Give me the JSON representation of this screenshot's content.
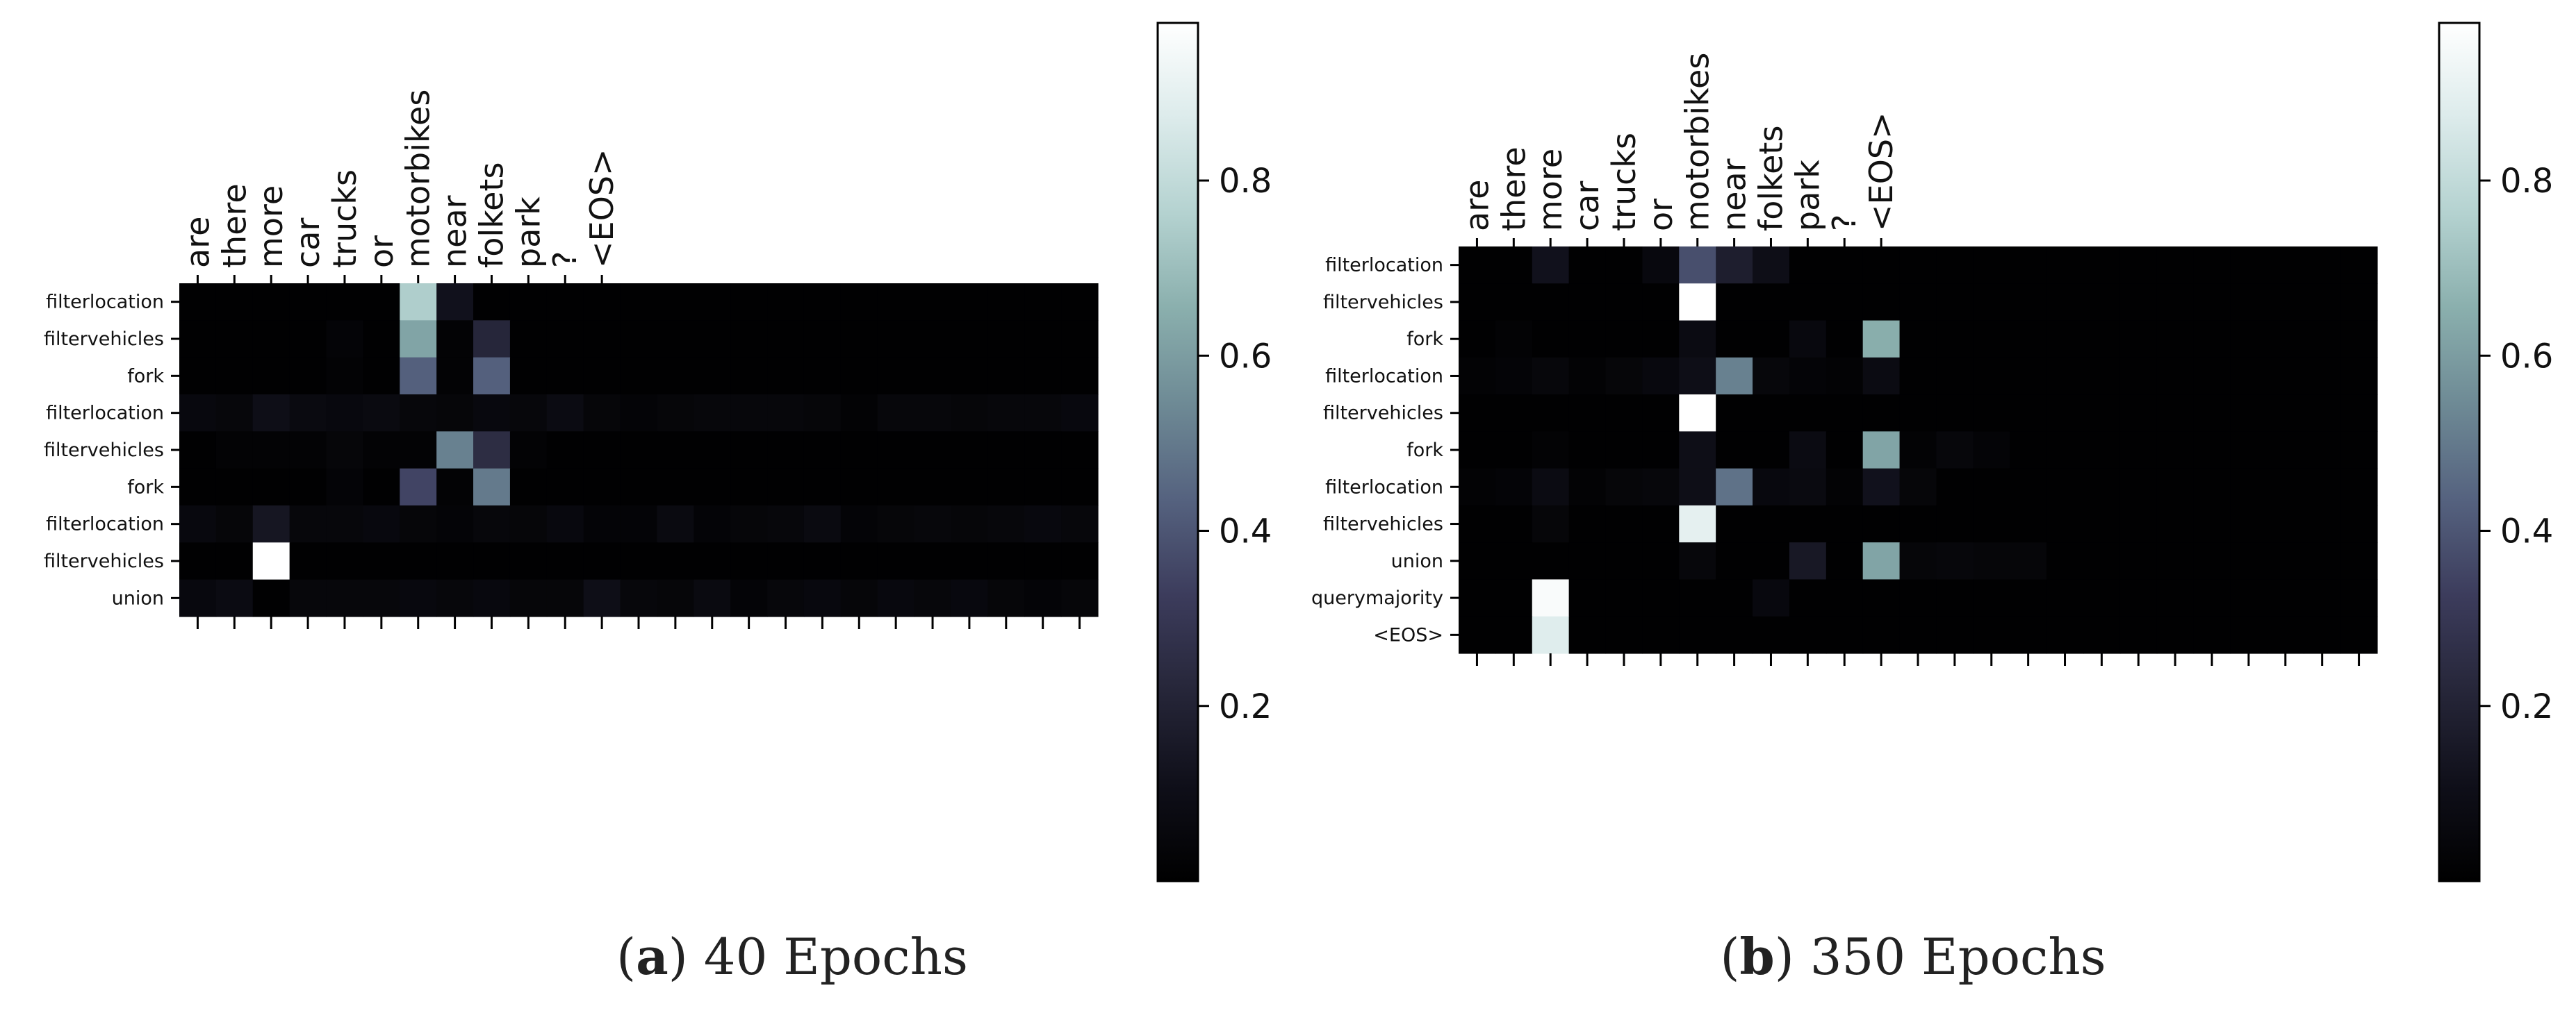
{
  "chart_data": [
    {
      "type": "heatmap",
      "panel_label": "a",
      "caption": "40 Epochs",
      "x_tokens": [
        "are",
        "there",
        "more",
        "car",
        "trucks",
        "or",
        "motorbikes",
        "near",
        "folkets",
        "park",
        "?",
        "<EOS>"
      ],
      "n_cols": 25,
      "y_labels": [
        "filterlocation",
        "filtervehicles",
        "fork",
        "filterlocation",
        "filtervehicles",
        "fork",
        "filterlocation",
        "filtervehicles",
        "union"
      ],
      "colorbar_ticks": [
        "0.2",
        "0.4",
        "0.6",
        "0.8"
      ],
      "vmin": 0.0,
      "vmax": 0.98,
      "colormap": [
        "#000000",
        "#0f0f19",
        "#262639",
        "#3c3c5c",
        "#55627f",
        "#6e8a95",
        "#8aafad",
        "#b4d2d0",
        "#dcebeb",
        "#ffffff"
      ],
      "values": [
        [
          0.01,
          0.01,
          0.01,
          0.01,
          0.01,
          0.01,
          0.75,
          0.12,
          0.01,
          0.01,
          0.01,
          0.01,
          0.01,
          0.01,
          0.01,
          0.01,
          0.01,
          0.01,
          0.01,
          0.01,
          0.01,
          0.01,
          0.01,
          0.01,
          0.01
        ],
        [
          0.01,
          0.01,
          0.01,
          0.01,
          0.03,
          0.01,
          0.62,
          0.02,
          0.22,
          0.01,
          0.01,
          0.01,
          0.01,
          0.01,
          0.01,
          0.01,
          0.01,
          0.01,
          0.01,
          0.01,
          0.01,
          0.01,
          0.01,
          0.01,
          0.01
        ],
        [
          0.01,
          0.01,
          0.01,
          0.01,
          0.02,
          0.01,
          0.43,
          0.02,
          0.43,
          0.01,
          0.01,
          0.01,
          0.01,
          0.01,
          0.01,
          0.01,
          0.01,
          0.01,
          0.01,
          0.01,
          0.01,
          0.01,
          0.01,
          0.01,
          0.01
        ],
        [
          0.06,
          0.05,
          0.1,
          0.07,
          0.06,
          0.07,
          0.05,
          0.04,
          0.06,
          0.05,
          0.08,
          0.04,
          0.03,
          0.04,
          0.05,
          0.05,
          0.05,
          0.04,
          0.02,
          0.05,
          0.05,
          0.04,
          0.05,
          0.05,
          0.06
        ],
        [
          0.01,
          0.02,
          0.02,
          0.02,
          0.04,
          0.02,
          0.02,
          0.52,
          0.25,
          0.02,
          0.01,
          0.01,
          0.01,
          0.01,
          0.01,
          0.01,
          0.01,
          0.01,
          0.01,
          0.01,
          0.01,
          0.01,
          0.01,
          0.01,
          0.01
        ],
        [
          0.01,
          0.01,
          0.01,
          0.01,
          0.03,
          0.01,
          0.35,
          0.02,
          0.5,
          0.01,
          0.01,
          0.01,
          0.01,
          0.01,
          0.01,
          0.01,
          0.01,
          0.01,
          0.01,
          0.01,
          0.01,
          0.01,
          0.01,
          0.01,
          0.01
        ],
        [
          0.06,
          0.04,
          0.14,
          0.05,
          0.05,
          0.06,
          0.04,
          0.03,
          0.05,
          0.04,
          0.06,
          0.03,
          0.03,
          0.07,
          0.03,
          0.04,
          0.05,
          0.07,
          0.03,
          0.04,
          0.05,
          0.04,
          0.05,
          0.06,
          0.05
        ],
        [
          0.01,
          0.01,
          0.98,
          0.01,
          0.01,
          0.01,
          0.01,
          0.01,
          0.01,
          0.01,
          0.01,
          0.01,
          0.01,
          0.01,
          0.01,
          0.01,
          0.01,
          0.01,
          0.01,
          0.01,
          0.01,
          0.01,
          0.01,
          0.01,
          0.01
        ],
        [
          0.06,
          0.08,
          0.01,
          0.05,
          0.05,
          0.05,
          0.06,
          0.05,
          0.06,
          0.04,
          0.04,
          0.1,
          0.05,
          0.04,
          0.07,
          0.03,
          0.05,
          0.06,
          0.04,
          0.06,
          0.05,
          0.06,
          0.04,
          0.03,
          0.04
        ]
      ]
    },
    {
      "type": "heatmap",
      "panel_label": "b",
      "caption": "350 Epochs",
      "x_tokens": [
        "are",
        "there",
        "more",
        "car",
        "trucks",
        "or",
        "motorbikes",
        "near",
        "folkets",
        "park",
        "?",
        "<EOS>"
      ],
      "n_cols": 25,
      "y_labels": [
        "filterlocation",
        "filtervehicles",
        "fork",
        "filterlocation",
        "filtervehicles",
        "fork",
        "filterlocation",
        "filtervehicles",
        "union",
        "querymajority",
        "<EOS>"
      ],
      "colorbar_ticks": [
        "0.2",
        "0.4",
        "0.6",
        "0.8"
      ],
      "vmin": 0.0,
      "vmax": 0.98,
      "colormap": [
        "#000000",
        "#0f0f19",
        "#262639",
        "#3c3c5c",
        "#55627f",
        "#6e8a95",
        "#8aafad",
        "#b4d2d0",
        "#dcebeb",
        "#ffffff"
      ],
      "values": [
        [
          0.01,
          0.01,
          0.12,
          0.01,
          0.01,
          0.06,
          0.38,
          0.18,
          0.1,
          0.01,
          0.01,
          0.01,
          0.01,
          0.01,
          0.01,
          0.01,
          0.01,
          0.01,
          0.01,
          0.01,
          0.01,
          0.01,
          0.01,
          0.01,
          0.01
        ],
        [
          0.01,
          0.01,
          0.01,
          0.01,
          0.01,
          0.01,
          0.98,
          0.01,
          0.01,
          0.01,
          0.01,
          0.01,
          0.01,
          0.01,
          0.01,
          0.01,
          0.01,
          0.01,
          0.01,
          0.01,
          0.01,
          0.01,
          0.01,
          0.01,
          0.01
        ],
        [
          0.01,
          0.02,
          0.01,
          0.01,
          0.01,
          0.01,
          0.08,
          0.01,
          0.01,
          0.06,
          0.01,
          0.65,
          0.01,
          0.01,
          0.01,
          0.01,
          0.01,
          0.01,
          0.01,
          0.01,
          0.01,
          0.01,
          0.01,
          0.01,
          0.01
        ],
        [
          0.02,
          0.03,
          0.05,
          0.02,
          0.04,
          0.06,
          0.1,
          0.52,
          0.05,
          0.03,
          0.02,
          0.08,
          0.01,
          0.01,
          0.01,
          0.01,
          0.01,
          0.01,
          0.01,
          0.01,
          0.01,
          0.01,
          0.01,
          0.01,
          0.01
        ],
        [
          0.01,
          0.01,
          0.01,
          0.01,
          0.01,
          0.01,
          0.98,
          0.01,
          0.01,
          0.01,
          0.01,
          0.01,
          0.01,
          0.01,
          0.01,
          0.01,
          0.01,
          0.01,
          0.01,
          0.01,
          0.01,
          0.01,
          0.01,
          0.01,
          0.01
        ],
        [
          0.01,
          0.01,
          0.02,
          0.01,
          0.01,
          0.01,
          0.1,
          0.01,
          0.01,
          0.08,
          0.01,
          0.62,
          0.02,
          0.05,
          0.03,
          0.01,
          0.01,
          0.01,
          0.01,
          0.01,
          0.01,
          0.01,
          0.01,
          0.01,
          0.01
        ],
        [
          0.02,
          0.03,
          0.08,
          0.02,
          0.04,
          0.05,
          0.1,
          0.48,
          0.06,
          0.07,
          0.02,
          0.12,
          0.04,
          0.01,
          0.01,
          0.01,
          0.01,
          0.01,
          0.01,
          0.01,
          0.01,
          0.01,
          0.01,
          0.01,
          0.01
        ],
        [
          0.01,
          0.01,
          0.04,
          0.01,
          0.01,
          0.01,
          0.9,
          0.01,
          0.01,
          0.01,
          0.01,
          0.01,
          0.01,
          0.01,
          0.01,
          0.01,
          0.01,
          0.01,
          0.01,
          0.01,
          0.01,
          0.01,
          0.01,
          0.01,
          0.01
        ],
        [
          0.01,
          0.01,
          0.01,
          0.01,
          0.01,
          0.01,
          0.05,
          0.01,
          0.01,
          0.15,
          0.01,
          0.62,
          0.04,
          0.05,
          0.04,
          0.04,
          0.01,
          0.01,
          0.01,
          0.01,
          0.01,
          0.01,
          0.01,
          0.01,
          0.01
        ],
        [
          0.01,
          0.01,
          0.96,
          0.01,
          0.01,
          0.01,
          0.01,
          0.01,
          0.06,
          0.01,
          0.01,
          0.01,
          0.01,
          0.01,
          0.01,
          0.01,
          0.01,
          0.01,
          0.01,
          0.01,
          0.01,
          0.01,
          0.01,
          0.01,
          0.01
        ],
        [
          0.01,
          0.01,
          0.88,
          0.01,
          0.01,
          0.01,
          0.01,
          0.01,
          0.01,
          0.01,
          0.01,
          0.01,
          0.01,
          0.01,
          0.01,
          0.01,
          0.01,
          0.01,
          0.01,
          0.01,
          0.01,
          0.01,
          0.01,
          0.01,
          0.01
        ]
      ]
    }
  ]
}
